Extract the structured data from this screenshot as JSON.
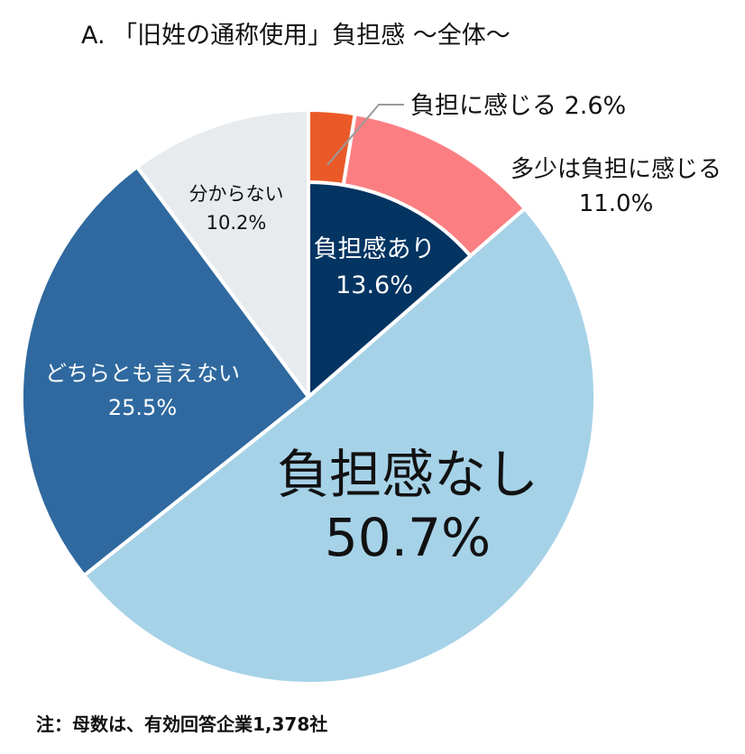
{
  "chart_data": {
    "type": "pie",
    "title": "A. 「旧姓の通称使用」負担感 ～全体～",
    "note": "注：母数は、有効回答企業1,378社",
    "start_angle_deg": 0,
    "direction": "clockwise",
    "slices": [
      {
        "label": "負担に感じる",
        "value": 2.6,
        "value_label": "2.6%",
        "color": "#ea5a29",
        "group": "burden"
      },
      {
        "label": "多少は負担に感じる",
        "value": 11.0,
        "value_label": "11.0%",
        "color": "#fb7f82",
        "group": "burden"
      },
      {
        "label": "負担感なし",
        "value": 50.7,
        "value_label": "50.7%",
        "color": "#a6d2e8"
      },
      {
        "label": "どちらとも言えない",
        "value": 25.5,
        "value_label": "25.5%",
        "color": "#2f699f"
      },
      {
        "label": "分からない",
        "value": 10.2,
        "value_label": "10.2%",
        "color": "#e8ebee"
      }
    ],
    "inner_group": {
      "label": "負担感あり",
      "value": 13.6,
      "value_label": "13.6%",
      "color": "#033462"
    }
  }
}
